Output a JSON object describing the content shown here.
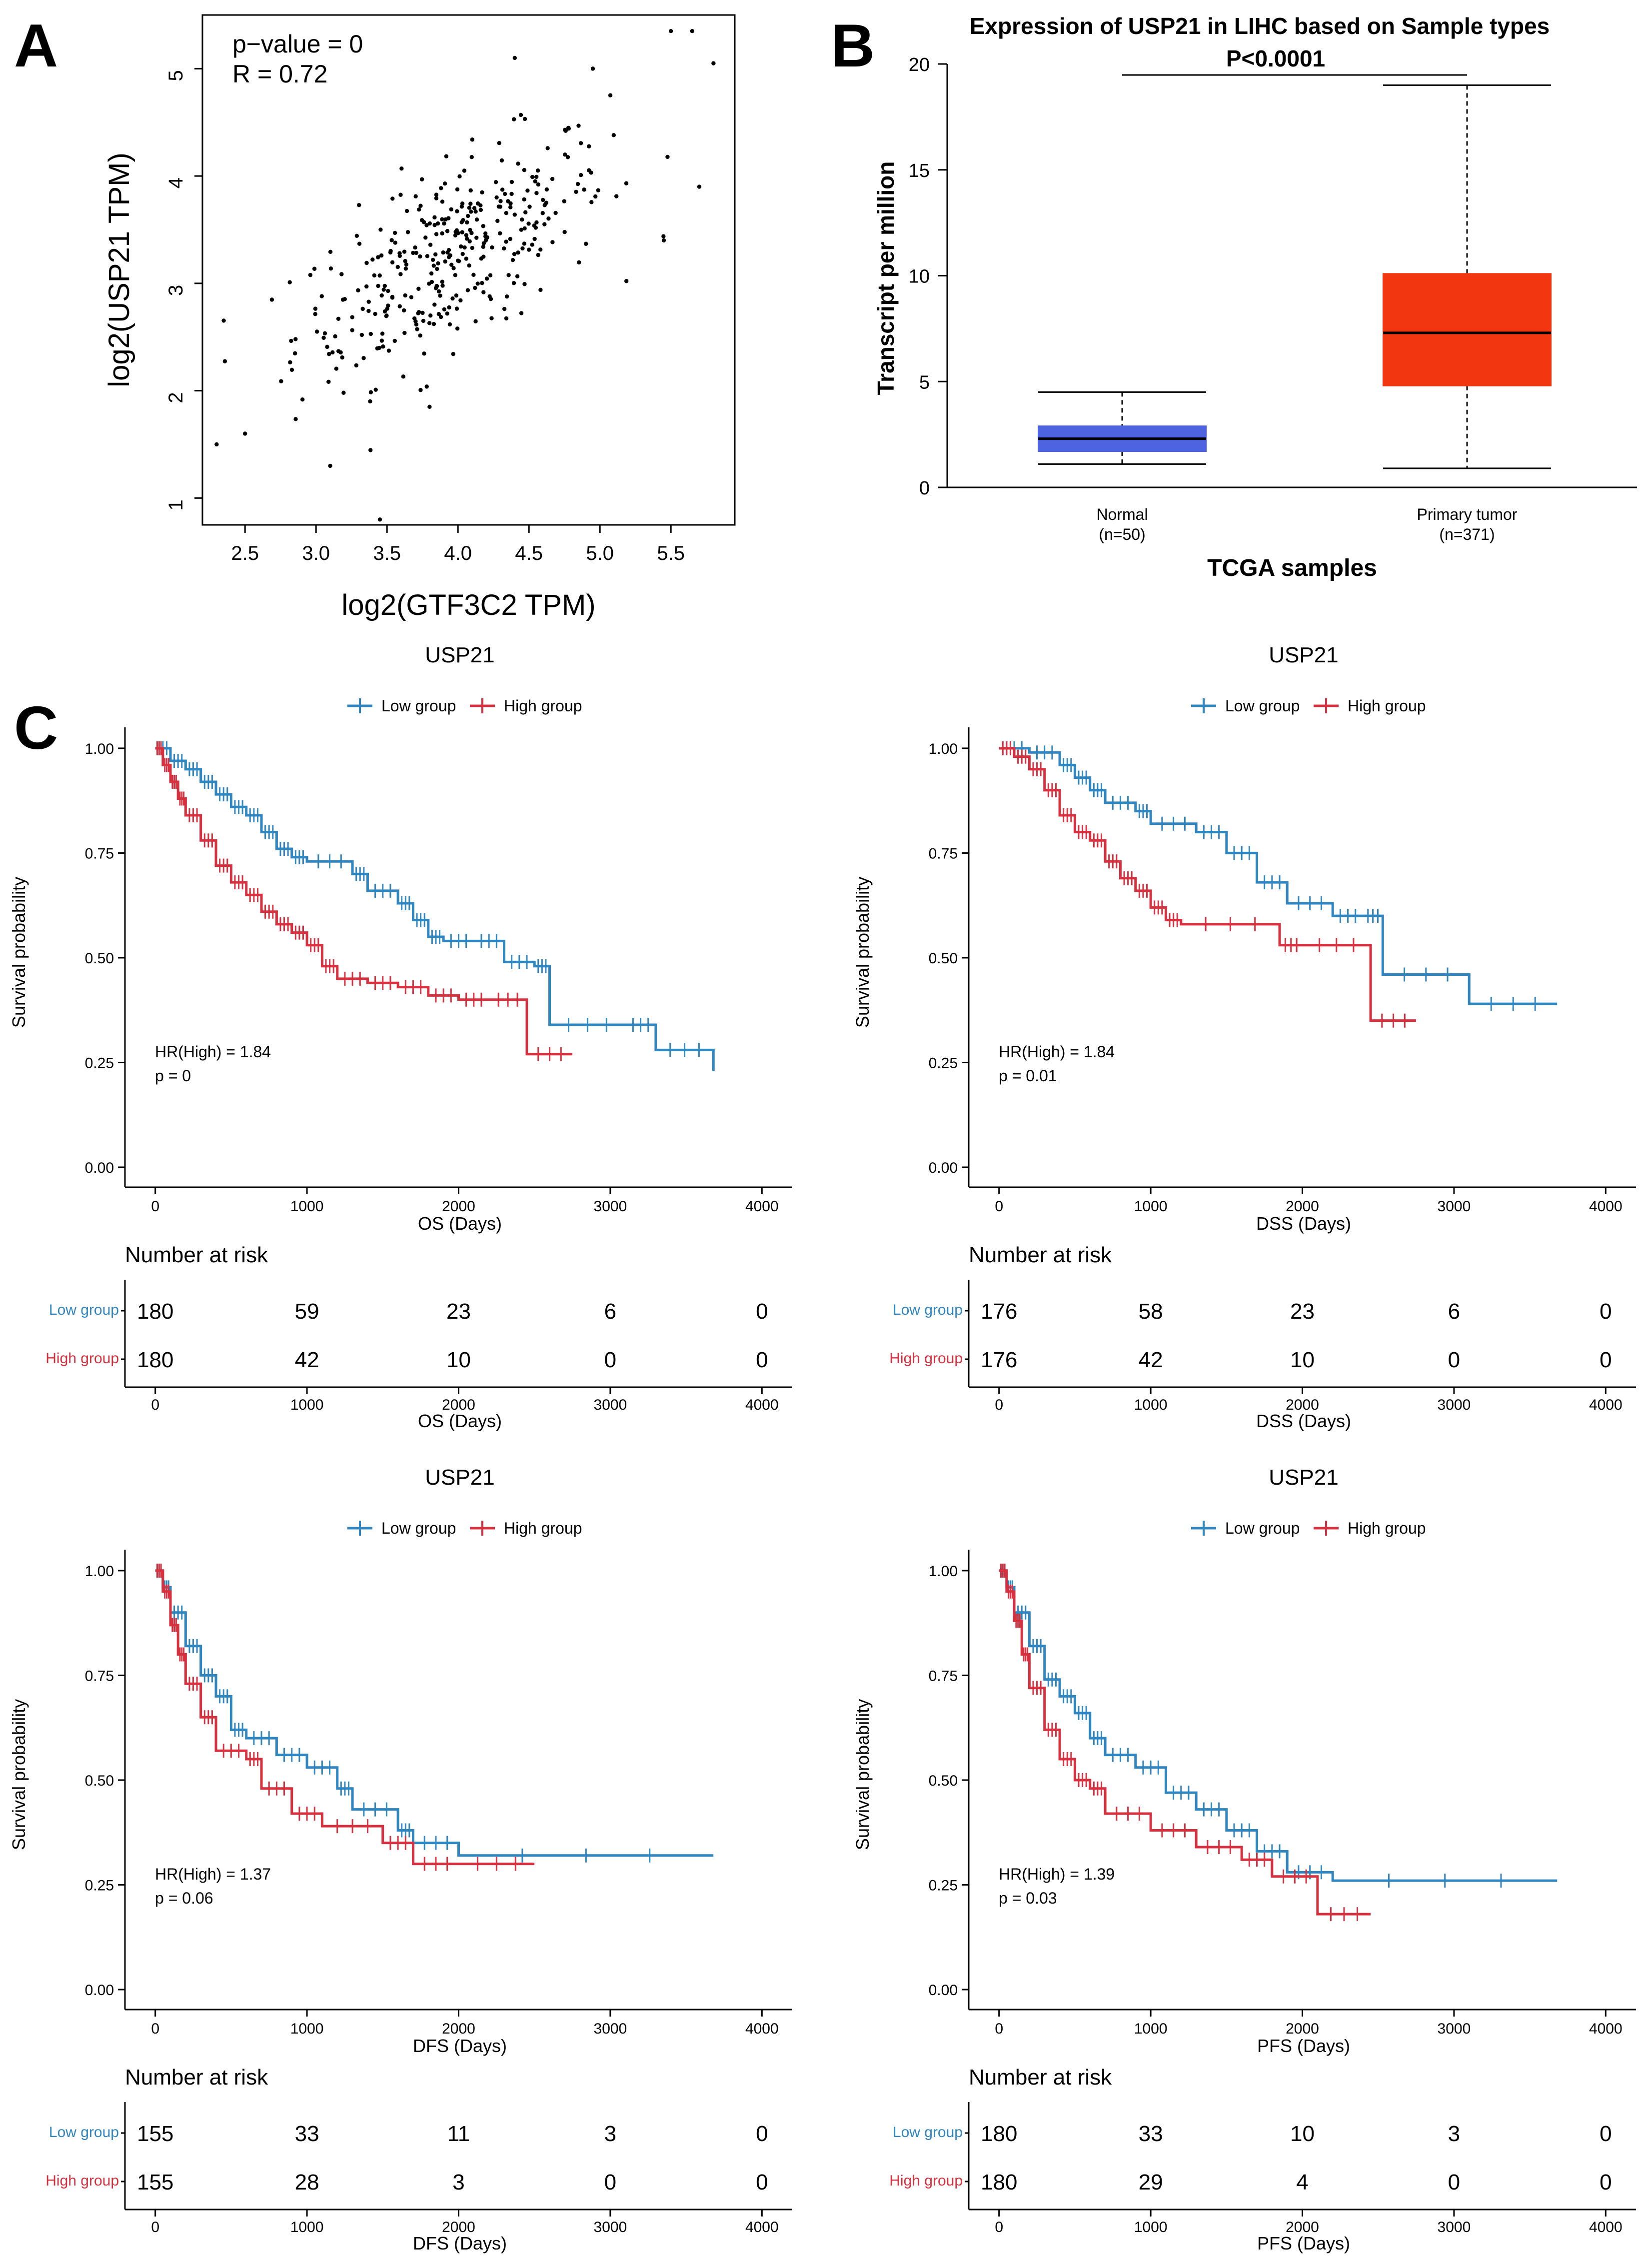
{
  "panel_labels": [
    "A",
    "B",
    "C"
  ],
  "chart_data": [
    {
      "panel": "A",
      "type": "scatter",
      "title": "",
      "xlabel": "log2(GTF3C2 TPM)",
      "ylabel": "log2(USP21 TPM)",
      "xlim": [
        2.2,
        5.95
      ],
      "ylim": [
        0.75,
        5.5
      ],
      "xticks": [
        "2.5",
        "3.0",
        "3.5",
        "4.0",
        "4.5",
        "5.0",
        "5.5"
      ],
      "yticks": [
        "1",
        "2",
        "3",
        "4",
        "5"
      ],
      "annotations": [
        "p−value = 0",
        "R = 0.72"
      ],
      "n_points": 371,
      "fit": {
        "slope": 0.68,
        "intercept": 0.57,
        "noise_sd": 0.42
      },
      "x_sd": 0.55,
      "x_mean": 3.95,
      "outliers": [
        [
          2.3,
          1.5
        ],
        [
          2.5,
          1.6
        ],
        [
          3.45,
          0.8
        ],
        [
          3.8,
          1.85
        ],
        [
          5.5,
          5.35
        ],
        [
          5.65,
          5.35
        ],
        [
          5.8,
          5.05
        ],
        [
          4.4,
          5.1
        ],
        [
          4.95,
          5.0
        ],
        [
          5.7,
          3.9
        ],
        [
          5.45,
          3.4
        ],
        [
          3.1,
          1.3
        ]
      ]
    },
    {
      "panel": "B",
      "type": "box",
      "title": "Expression of USP21 in LIHC based on Sample types",
      "annotation": "P<0.0001",
      "xlabel": "TCGA samples",
      "ylabel": "Transcript per million",
      "ylim": [
        0,
        20
      ],
      "yticks": [
        "0",
        "5",
        "10",
        "15",
        "20"
      ],
      "categories": [
        "Normal",
        "Primary tumor"
      ],
      "sublabels": [
        "(n=50)",
        "(n=371)"
      ],
      "boxes": [
        {
          "min": 1.1,
          "q1": 1.7,
          "median": 2.3,
          "q3": 2.9,
          "max": 4.5,
          "color": "#4d63e0"
        },
        {
          "min": 0.9,
          "q1": 4.8,
          "median": 7.3,
          "q3": 10.1,
          "max": 19.0,
          "color": "#f2360f"
        }
      ]
    },
    {
      "panel": "C",
      "type": "line",
      "title": "USP21",
      "xlabel": "OS  (Days)",
      "ylabel": "Survival probability",
      "legend": [
        "Low group",
        "High group"
      ],
      "colors": [
        "#2f86c0",
        "#d7303f"
      ],
      "xlim": [
        -200,
        4200
      ],
      "ylim": [
        0,
        1.05
      ],
      "xticks": [
        "0",
        "1000",
        "2000",
        "3000",
        "4000"
      ],
      "yticks": [
        "0.00",
        "0.25",
        "0.50",
        "0.75",
        "1.00"
      ],
      "annot": [
        "HR(High) = 1.84",
        "p = 0"
      ],
      "series": [
        {
          "name": "Low group",
          "x": [
            0,
            100,
            200,
            300,
            400,
            500,
            600,
            700,
            800,
            900,
            1000,
            1300,
            1400,
            1600,
            1700,
            1800,
            1900,
            2100,
            2300,
            2500,
            2600,
            3100,
            3300,
            3680
          ],
          "y": [
            1.0,
            0.97,
            0.95,
            0.92,
            0.89,
            0.86,
            0.84,
            0.8,
            0.76,
            0.74,
            0.73,
            0.7,
            0.66,
            0.63,
            0.59,
            0.55,
            0.54,
            0.54,
            0.49,
            0.48,
            0.34,
            0.34,
            0.28,
            0.23
          ]
        },
        {
          "name": "High group",
          "x": [
            0,
            50,
            100,
            150,
            200,
            300,
            400,
            500,
            600,
            700,
            800,
            900,
            1000,
            1100,
            1200,
            1400,
            1600,
            1800,
            2000,
            2200,
            2450,
            2750
          ],
          "y": [
            1.0,
            0.96,
            0.92,
            0.88,
            0.84,
            0.78,
            0.72,
            0.68,
            0.65,
            0.61,
            0.58,
            0.56,
            0.53,
            0.48,
            0.45,
            0.44,
            0.43,
            0.41,
            0.4,
            0.4,
            0.27,
            0.27
          ]
        }
      ],
      "risk_table": {
        "title": "Number at risk",
        "x": [
          0,
          1000,
          2000,
          3000,
          4000
        ],
        "rows": [
          {
            "name": "Low group",
            "values": [
              "180",
              "59",
              "23",
              "6",
              "0"
            ]
          },
          {
            "name": "High group",
            "values": [
              "180",
              "42",
              "10",
              "0",
              "0"
            ]
          }
        ],
        "xlabel": "OS  (Days)"
      }
    },
    {
      "panel": "C",
      "type": "line",
      "title": "USP21",
      "xlabel": "DSS  (Days)",
      "ylabel": "Survival probability",
      "legend": [
        "Low group",
        "High group"
      ],
      "colors": [
        "#2f86c0",
        "#d7303f"
      ],
      "xlim": [
        -200,
        4200
      ],
      "ylim": [
        0,
        1.05
      ],
      "xticks": [
        "0",
        "1000",
        "2000",
        "3000",
        "4000"
      ],
      "yticks": [
        "0.00",
        "0.25",
        "0.50",
        "0.75",
        "1.00"
      ],
      "annot": [
        "HR(High) = 1.84",
        "p = 0.01"
      ],
      "series": [
        {
          "name": "Low group",
          "x": [
            0,
            200,
            400,
            500,
            600,
            700,
            900,
            1000,
            1300,
            1500,
            1700,
            1900,
            2200,
            2400,
            2530,
            3100,
            3680
          ],
          "y": [
            1.0,
            0.99,
            0.96,
            0.93,
            0.9,
            0.87,
            0.85,
            0.82,
            0.8,
            0.75,
            0.68,
            0.63,
            0.6,
            0.6,
            0.46,
            0.39,
            0.39
          ]
        },
        {
          "name": "High group",
          "x": [
            0,
            100,
            200,
            300,
            400,
            500,
            600,
            700,
            800,
            900,
            1000,
            1100,
            1200,
            1850,
            2000,
            2450,
            2750
          ],
          "y": [
            1.0,
            0.98,
            0.95,
            0.9,
            0.84,
            0.8,
            0.78,
            0.73,
            0.69,
            0.66,
            0.62,
            0.59,
            0.58,
            0.53,
            0.53,
            0.35,
            0.35
          ]
        }
      ],
      "risk_table": {
        "title": "Number at risk",
        "x": [
          0,
          1000,
          2000,
          3000,
          4000
        ],
        "rows": [
          {
            "name": "Low group",
            "values": [
              "176",
              "58",
              "23",
              "6",
              "0"
            ]
          },
          {
            "name": "High group",
            "values": [
              "176",
              "42",
              "10",
              "0",
              "0"
            ]
          }
        ],
        "xlabel": "DSS  (Days)"
      }
    },
    {
      "panel": "C",
      "type": "line",
      "title": "USP21",
      "xlabel": "DFS  (Days)",
      "ylabel": "Survival probability",
      "legend": [
        "Low group",
        "High group"
      ],
      "colors": [
        "#2f86c0",
        "#d7303f"
      ],
      "xlim": [
        -200,
        4200
      ],
      "ylim": [
        0,
        1.05
      ],
      "xticks": [
        "0",
        "1000",
        "2000",
        "3000",
        "4000"
      ],
      "yticks": [
        "0.00",
        "0.25",
        "0.50",
        "0.75",
        "1.00"
      ],
      "annot": [
        "HR(High) = 1.37",
        "p = 0.06"
      ],
      "series": [
        {
          "name": "Low group",
          "x": [
            0,
            50,
            100,
            200,
            300,
            400,
            500,
            600,
            800,
            1000,
            1200,
            1300,
            1600,
            1700,
            2000,
            3680
          ],
          "y": [
            1.0,
            0.96,
            0.9,
            0.82,
            0.75,
            0.7,
            0.62,
            0.6,
            0.56,
            0.53,
            0.48,
            0.43,
            0.38,
            0.35,
            0.32,
            0.32
          ]
        },
        {
          "name": "High group",
          "x": [
            0,
            50,
            100,
            150,
            200,
            300,
            400,
            600,
            700,
            900,
            1100,
            1500,
            1700,
            2000,
            2500
          ],
          "y": [
            1.0,
            0.95,
            0.87,
            0.8,
            0.73,
            0.65,
            0.57,
            0.55,
            0.48,
            0.42,
            0.39,
            0.35,
            0.3,
            0.3,
            0.3
          ]
        }
      ],
      "risk_table": {
        "title": "Number at risk",
        "x": [
          0,
          1000,
          2000,
          3000,
          4000
        ],
        "rows": [
          {
            "name": "Low group",
            "values": [
              "155",
              "33",
              "11",
              "3",
              "0"
            ]
          },
          {
            "name": "High group",
            "values": [
              "155",
              "28",
              "3",
              "0",
              "0"
            ]
          }
        ],
        "xlabel": "DFS  (Days)"
      }
    },
    {
      "panel": "C",
      "type": "line",
      "title": "USP21",
      "xlabel": "PFS  (Days)",
      "ylabel": "Survival probability",
      "legend": [
        "Low group",
        "High group"
      ],
      "colors": [
        "#2f86c0",
        "#d7303f"
      ],
      "xlim": [
        -200,
        4200
      ],
      "ylim": [
        0,
        1.05
      ],
      "xticks": [
        "0",
        "1000",
        "2000",
        "3000",
        "4000"
      ],
      "yticks": [
        "0.00",
        "0.25",
        "0.50",
        "0.75",
        "1.00"
      ],
      "annot": [
        "HR(High) = 1.39",
        "p = 0.03"
      ],
      "series": [
        {
          "name": "Low group",
          "x": [
            0,
            50,
            100,
            200,
            300,
            400,
            500,
            600,
            700,
            900,
            1100,
            1300,
            1500,
            1700,
            1900,
            2200,
            3680
          ],
          "y": [
            1.0,
            0.96,
            0.9,
            0.82,
            0.74,
            0.7,
            0.66,
            0.6,
            0.56,
            0.53,
            0.47,
            0.43,
            0.38,
            0.33,
            0.28,
            0.26,
            0.26
          ]
        },
        {
          "name": "High group",
          "x": [
            0,
            50,
            100,
            150,
            200,
            300,
            400,
            500,
            600,
            700,
            1000,
            1300,
            1600,
            1800,
            2100,
            2450
          ],
          "y": [
            1.0,
            0.95,
            0.88,
            0.8,
            0.72,
            0.62,
            0.55,
            0.5,
            0.48,
            0.42,
            0.38,
            0.34,
            0.31,
            0.27,
            0.18,
            0.18
          ]
        }
      ],
      "risk_table": {
        "title": "Number at risk",
        "x": [
          0,
          1000,
          2000,
          3000,
          4000
        ],
        "rows": [
          {
            "name": "Low group",
            "values": [
              "180",
              "33",
              "10",
              "3",
              "0"
            ]
          },
          {
            "name": "High group",
            "values": [
              "180",
              "29",
              "4",
              "0",
              "0"
            ]
          }
        ],
        "xlabel": "PFS  (Days)"
      }
    }
  ]
}
